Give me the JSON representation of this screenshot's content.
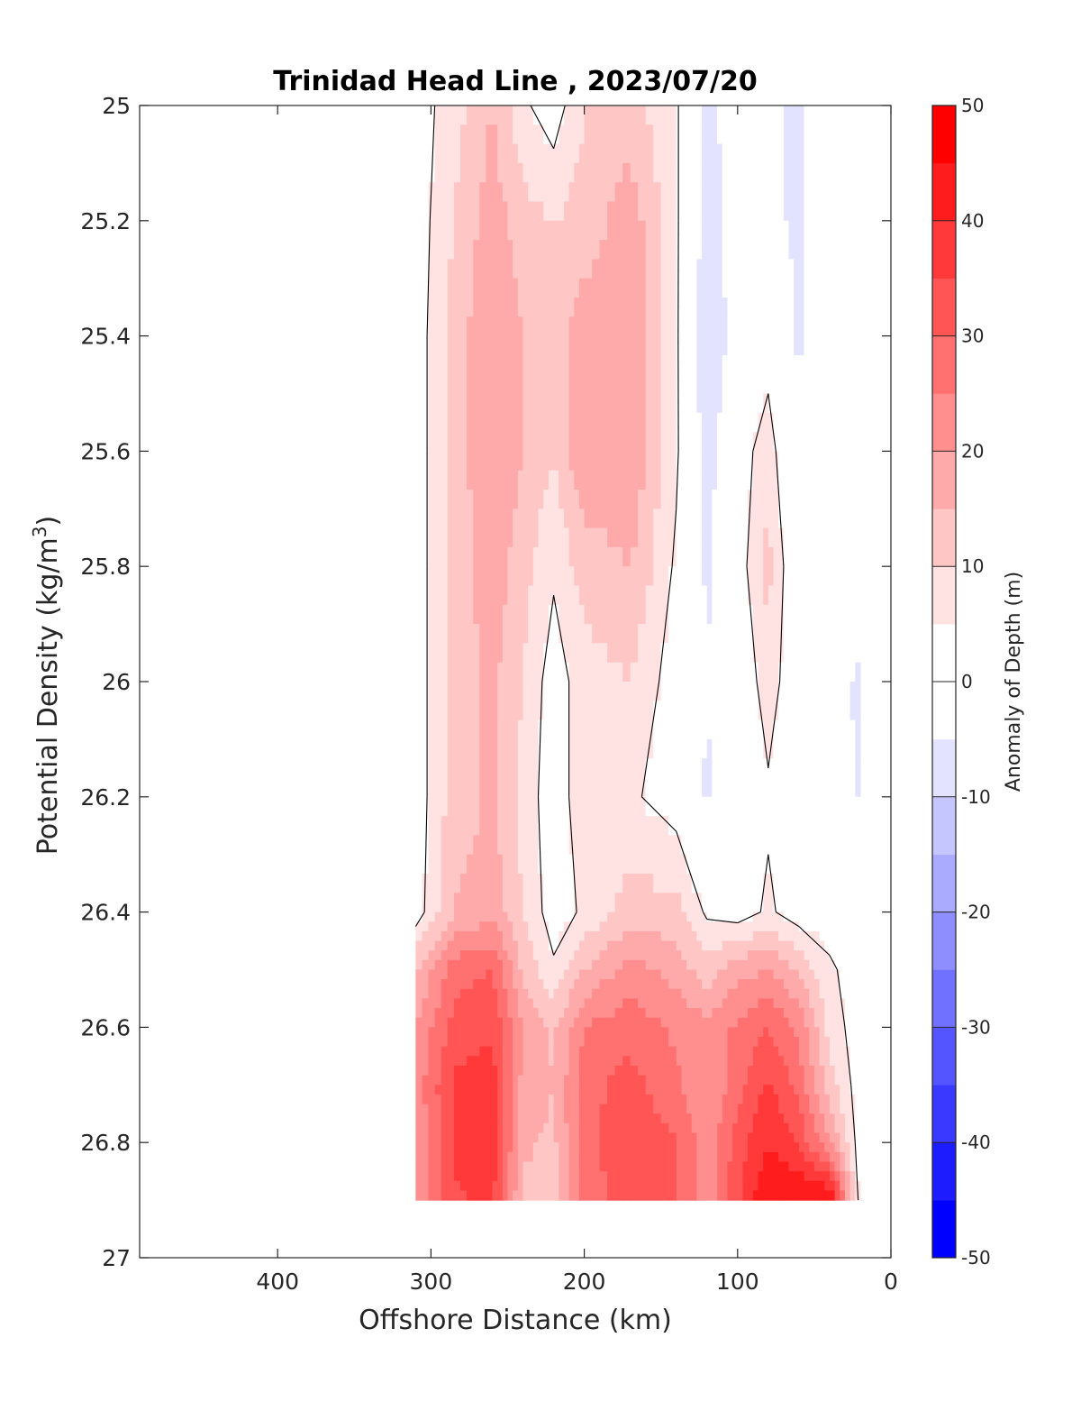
{
  "chart_data": {
    "type": "contour",
    "title": "Trinidad Head Line , 2023/07/20",
    "xlabel": "Offshore Distance (km)",
    "ylabel_main": "Potential Density (kg/m",
    "ylabel_sup": "3",
    "ylabel_close": ")",
    "xlim": [
      490,
      0
    ],
    "ylim": [
      25,
      27
    ],
    "y_reversed": true,
    "x_ticks": [
      "400",
      "300",
      "200",
      "100",
      "0"
    ],
    "x_tick_values": [
      400,
      300,
      200,
      100,
      0
    ],
    "y_ticks": [
      "25",
      "25.2",
      "25.4",
      "25.6",
      "25.8",
      "26",
      "26.2",
      "26.4",
      "26.6",
      "26.8",
      "27"
    ],
    "y_tick_values": [
      25,
      25.2,
      25.4,
      25.6,
      25.8,
      26,
      26.2,
      26.4,
      26.6,
      26.8,
      27
    ],
    "colorbar": {
      "label": "Anomaly of Depth (m)",
      "min": -50,
      "max": 50,
      "step": 5,
      "tick_labels": [
        "50",
        "40",
        "30",
        "20",
        "10",
        "0",
        "-10",
        "-20",
        "-30",
        "-40",
        "-50"
      ],
      "tick_values": [
        50,
        40,
        30,
        20,
        10,
        0,
        -10,
        -20,
        -30,
        -40,
        -50
      ],
      "high_color": "#ff0000",
      "low_color": "#0000ff",
      "mid_color": "#ffffff"
    },
    "stations_km": [
      310,
      285,
      260,
      240,
      220,
      200,
      170,
      140,
      120,
      100,
      80,
      60,
      40,
      20
    ],
    "density_levels": [
      25.0,
      25.2,
      25.4,
      25.6,
      25.8,
      26.0,
      26.2,
      26.4,
      26.5,
      26.6,
      26.7,
      26.8,
      26.9
    ],
    "anomaly_grid": [
      [
        2,
        8,
        15,
        6,
        2,
        10,
        12,
        6,
        -8,
        0,
        -4,
        -6,
        2,
        2
      ],
      [
        2,
        10,
        18,
        12,
        10,
        12,
        18,
        6,
        -8,
        -2,
        -4,
        -6,
        2,
        2
      ],
      [
        2,
        12,
        20,
        15,
        12,
        18,
        20,
        6,
        -10,
        -2,
        2,
        -6,
        2,
        2
      ],
      [
        2,
        12,
        20,
        15,
        10,
        20,
        20,
        6,
        -8,
        2,
        8,
        -4,
        2,
        2
      ],
      [
        2,
        12,
        18,
        12,
        6,
        12,
        15,
        4,
        -6,
        2,
        12,
        -2,
        2,
        2
      ],
      [
        2,
        12,
        16,
        10,
        2,
        8,
        10,
        2,
        -5,
        0,
        8,
        0,
        2,
        -8
      ],
      [
        2,
        12,
        16,
        8,
        2,
        8,
        6,
        2,
        -6,
        0,
        4,
        0,
        2,
        -6
      ],
      [
        2,
        15,
        18,
        10,
        2,
        6,
        12,
        12,
        4,
        2,
        6,
        2,
        2,
        2
      ],
      [
        14,
        28,
        30,
        14,
        6,
        15,
        22,
        18,
        12,
        18,
        20,
        14,
        6,
        2
      ],
      [
        20,
        32,
        34,
        20,
        14,
        25,
        28,
        24,
        22,
        26,
        30,
        24,
        8,
        2
      ],
      [
        22,
        36,
        38,
        18,
        15,
        28,
        32,
        26,
        20,
        28,
        36,
        28,
        12,
        2
      ],
      [
        20,
        36,
        38,
        16,
        14,
        28,
        34,
        30,
        22,
        32,
        40,
        34,
        20,
        2
      ],
      [
        20,
        34,
        36,
        14,
        12,
        26,
        34,
        30,
        22,
        34,
        45,
        46,
        46,
        2
      ]
    ]
  }
}
